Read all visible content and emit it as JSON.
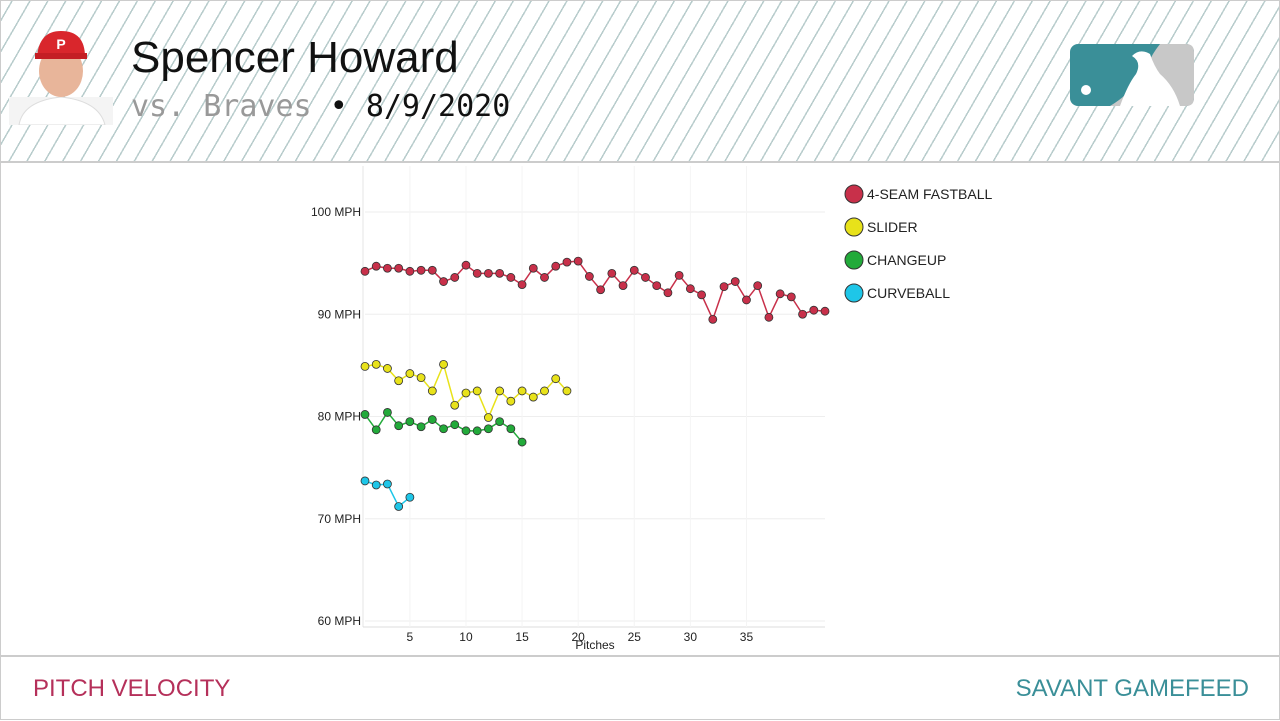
{
  "header": {
    "name": "Spencer Howard",
    "opponent": "vs. Braves",
    "separator": "•",
    "date": "8/9/2020"
  },
  "footer": {
    "left": "PITCH VELOCITY",
    "right": "SAVANT GAMEFEED"
  },
  "chart_data": {
    "type": "line",
    "xlabel": "Pitches",
    "x": [
      1,
      2,
      3,
      4,
      5,
      6,
      7,
      8,
      9,
      10,
      11,
      12,
      13,
      14,
      15,
      16,
      17,
      18,
      19,
      20,
      21,
      22,
      23,
      24,
      25,
      26,
      27,
      28,
      29,
      30,
      31,
      32,
      33,
      34,
      35,
      36,
      37,
      38,
      39,
      40,
      41,
      42
    ],
    "xlim": [
      1,
      42
    ],
    "xticks": [
      5,
      10,
      15,
      20,
      25,
      30,
      35
    ],
    "ylim": [
      60,
      104.5
    ],
    "yticks": [
      {
        "value": 60,
        "label": "60 MPH"
      },
      {
        "value": 70,
        "label": "70 MPH"
      },
      {
        "value": 80,
        "label": "80 MPH"
      },
      {
        "value": 90,
        "label": "90 MPH"
      },
      {
        "value": 100,
        "label": "100 MPH"
      }
    ],
    "grid": true,
    "series": [
      {
        "name": "4-SEAM FASTBALL",
        "color": "#c8304a",
        "values": [
          94.2,
          94.7,
          94.5,
          94.5,
          94.2,
          94.3,
          94.3,
          93.2,
          93.6,
          94.8,
          94.0,
          94.0,
          94.0,
          93.6,
          92.9,
          94.5,
          93.6,
          94.7,
          95.1,
          95.2,
          93.7,
          92.4,
          94.0,
          92.8,
          94.3,
          93.6,
          92.8,
          92.1,
          93.8,
          92.5,
          91.9,
          89.5,
          92.7,
          93.2,
          91.4,
          92.8,
          89.7,
          92.0,
          91.7,
          90.0,
          90.4,
          90.3
        ]
      },
      {
        "name": "SLIDER",
        "color": "#e8e21a",
        "values": [
          84.9,
          85.1,
          84.7,
          83.5,
          84.2,
          83.8,
          82.5,
          85.1,
          81.1,
          82.3,
          82.5,
          79.9,
          82.5,
          81.5,
          82.5,
          81.9,
          82.5,
          83.7,
          82.5,
          null,
          null,
          null,
          null,
          null,
          null,
          null,
          null,
          null,
          null,
          null,
          null,
          null,
          null,
          null,
          null,
          null,
          null,
          null,
          null,
          null,
          null,
          null
        ]
      },
      {
        "name": "CHANGEUP",
        "color": "#22aa3a",
        "values": [
          80.2,
          78.7,
          80.4,
          79.1,
          79.5,
          79.0,
          79.7,
          78.8,
          79.2,
          78.6,
          78.6,
          78.8,
          79.5,
          78.8,
          77.5,
          null,
          null,
          null,
          null,
          null,
          null,
          null,
          null,
          null,
          null,
          null,
          null,
          null,
          null,
          null,
          null,
          null,
          null,
          null,
          null,
          null,
          null,
          null,
          null,
          null,
          null,
          null
        ]
      },
      {
        "name": "CURVEBALL",
        "color": "#1ec6e8",
        "values": [
          73.7,
          73.3,
          73.4,
          71.2,
          72.1,
          null,
          null,
          null,
          null,
          null,
          null,
          null,
          null,
          null,
          null,
          null,
          null,
          null,
          null,
          null,
          null,
          null,
          null,
          null,
          null,
          null,
          null,
          null,
          null,
          null,
          null,
          null,
          null,
          null,
          null,
          null,
          null,
          null,
          null,
          null,
          null,
          null
        ]
      }
    ]
  }
}
